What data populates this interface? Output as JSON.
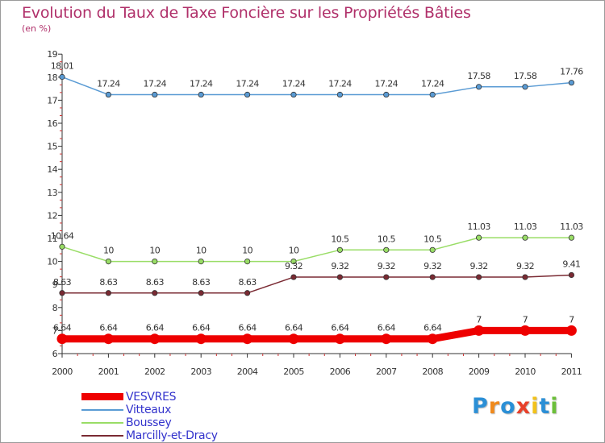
{
  "chart_data": {
    "type": "line",
    "title": "Evolution du Taux de Taxe Foncière sur les Propriétés Bâties",
    "subtitle": "(en %)",
    "xlabel": "",
    "ylabel": "",
    "x": [
      "2000",
      "2001",
      "2002",
      "2003",
      "2004",
      "2005",
      "2006",
      "2007",
      "2008",
      "2009",
      "2010",
      "2011"
    ],
    "ylim": [
      6,
      19
    ],
    "yticks": [
      "6",
      "7",
      "8",
      "9",
      "10",
      "11",
      "12",
      "13",
      "14",
      "15",
      "16",
      "17",
      "18",
      "19"
    ],
    "grid": false,
    "legend_position": "bottom-left",
    "series": [
      {
        "name": "Vitteaux",
        "color": "#5a9bd4",
        "values": [
          18.01,
          17.24,
          17.24,
          17.24,
          17.24,
          17.24,
          17.24,
          17.24,
          17.24,
          17.58,
          17.58,
          17.76
        ],
        "labels": [
          "18.01",
          "17.24",
          "17.24",
          "17.24",
          "17.24",
          "17.24",
          "17.24",
          "17.24",
          "17.24",
          "17.58",
          "17.58",
          "17.76"
        ]
      },
      {
        "name": "Boussey",
        "color": "#99dd66",
        "values": [
          10.64,
          10,
          10,
          10,
          10,
          10,
          10.5,
          10.5,
          10.5,
          11.03,
          11.03,
          11.03
        ],
        "labels": [
          "10.64",
          "10",
          "10",
          "10",
          "10",
          "10",
          "10.5",
          "10.5",
          "10.5",
          "11.03",
          "11.03",
          "11.03"
        ]
      },
      {
        "name": "Marcilly-et-Dracy",
        "color": "#7a2a33",
        "values": [
          8.63,
          8.63,
          8.63,
          8.63,
          8.63,
          9.32,
          9.32,
          9.32,
          9.32,
          9.32,
          9.32,
          9.41
        ],
        "labels": [
          "8.63",
          "8.63",
          "8.63",
          "8.63",
          "8.63",
          "9.32",
          "9.32",
          "9.32",
          "9.32",
          "9.32",
          "9.32",
          "9.41"
        ]
      },
      {
        "name": "VESVRES",
        "color": "#ee0000",
        "values": [
          6.64,
          6.64,
          6.64,
          6.64,
          6.64,
          6.64,
          6.64,
          6.64,
          6.64,
          7,
          7,
          7
        ],
        "labels": [
          "6.64",
          "6.64",
          "6.64",
          "6.64",
          "6.64",
          "6.64",
          "6.64",
          "6.64",
          "6.64",
          "7",
          "7",
          "7"
        ]
      }
    ]
  },
  "legend": {
    "items": [
      "VESVRES",
      "Vitteaux",
      "Boussey",
      "Marcilly-et-Dracy"
    ],
    "colors": [
      "#ee0000",
      "#5a9bd4",
      "#99dd66",
      "#7a2a33"
    ]
  },
  "logo": {
    "text": "Proxiti",
    "letters": [
      "P",
      "r",
      "o",
      "x",
      "i",
      "t",
      "i"
    ],
    "colors": [
      "#2b8fd6",
      "#f08a1c",
      "#2b8fd6",
      "#e8402a",
      "#f2c21b",
      "#2b8fd6",
      "#6cbf3a"
    ]
  }
}
